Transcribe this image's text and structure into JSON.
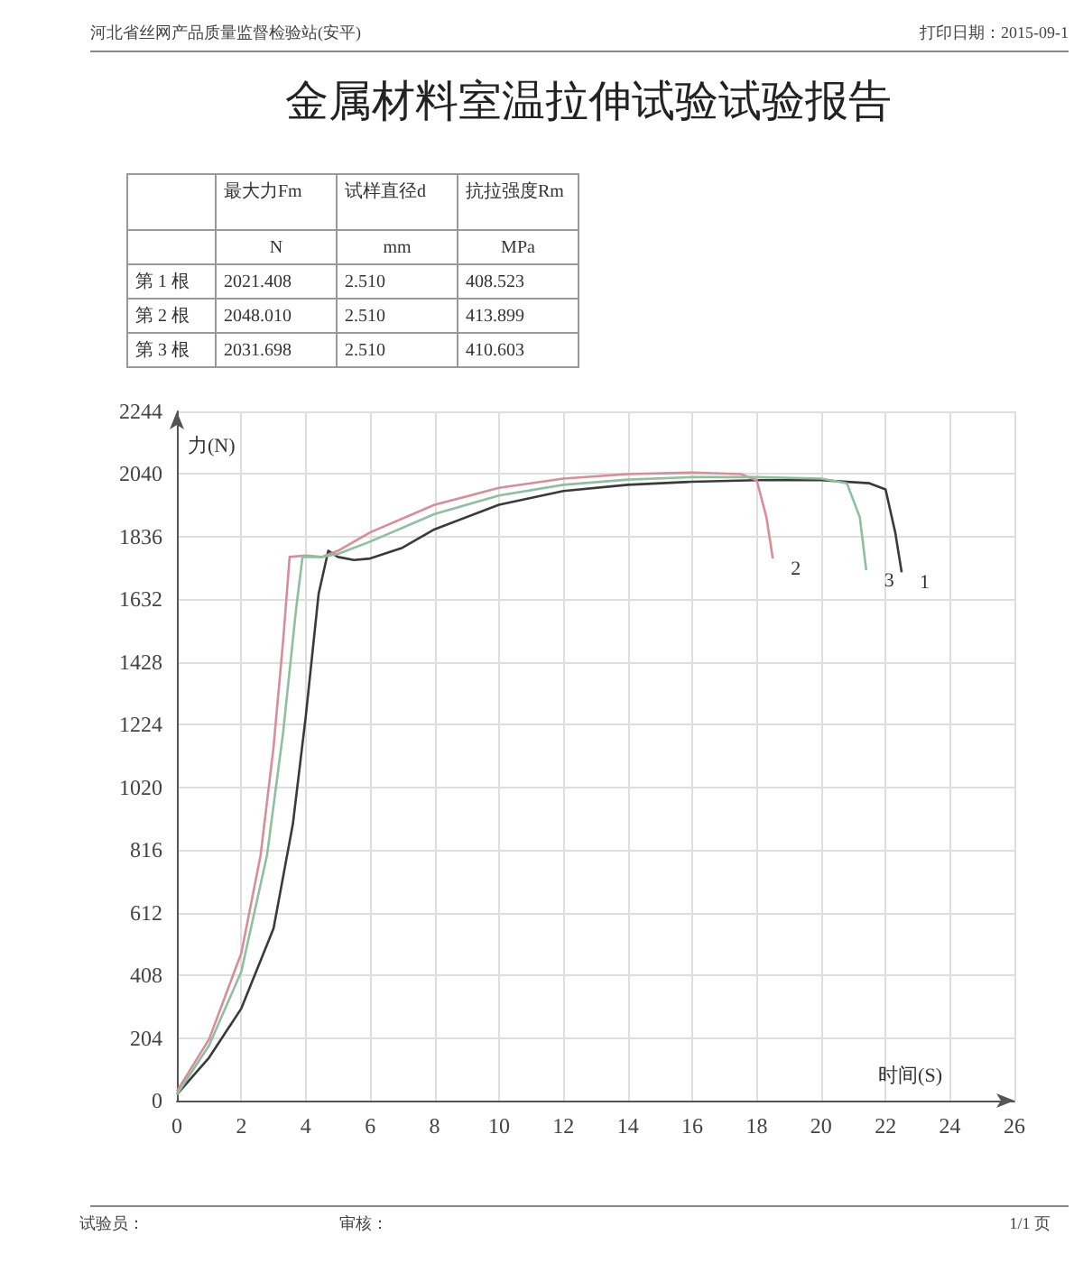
{
  "chart_data": {
    "type": "line",
    "title": "金属材料室温拉伸试验试验报告",
    "xlabel": "时间(S)",
    "ylabel": "力(N)",
    "xlim": [
      0,
      26
    ],
    "xticks": [
      0,
      2,
      4,
      6,
      8,
      10,
      12,
      14,
      16,
      18,
      20,
      22,
      24,
      26
    ],
    "ylim": [
      0,
      2244
    ],
    "yticks": [
      0,
      204,
      408,
      612,
      816,
      1020,
      1224,
      1428,
      1632,
      1836,
      2040,
      2244
    ],
    "grid": true,
    "marker": "none",
    "legend": false,
    "annotations": [
      "河北省丝网产品质量监督检验站(安平)",
      "打印日期：2015-09-1",
      "试验员：",
      "审核：",
      "1/1 页",
      "最大力Fm",
      "试样直径d",
      "抗拉强度Rm",
      "N",
      "mm",
      "MPa",
      "第 1 根",
      "2021.408",
      "2.510",
      "408.523",
      "第 2 根",
      "2048.010",
      "2.510",
      "413.899",
      "第 3 根",
      "2031.698",
      "2.510",
      "410.603"
    ],
    "series": [
      {
        "name": "1",
        "color": "#3a3a3a",
        "x": [
          0,
          1,
          2,
          3,
          3.6,
          4,
          4.4,
          4.7,
          5,
          5.5,
          6,
          7,
          8,
          10,
          12,
          14,
          16,
          18,
          20,
          21.5,
          22,
          22.3,
          22.5
        ],
        "values": [
          20,
          140,
          300,
          560,
          900,
          1250,
          1650,
          1790,
          1770,
          1760,
          1765,
          1800,
          1860,
          1940,
          1985,
          2005,
          2015,
          2020,
          2020,
          2010,
          1990,
          1850,
          1720
        ]
      },
      {
        "name": "2",
        "color": "#d98c9a",
        "x": [
          0,
          1,
          2,
          2.6,
          3,
          3.3,
          3.5,
          4,
          4.5,
          5,
          6,
          8,
          10,
          12,
          14,
          16,
          17.5,
          18,
          18.3,
          18.5
        ],
        "values": [
          30,
          200,
          480,
          800,
          1150,
          1500,
          1770,
          1775,
          1770,
          1790,
          1850,
          1940,
          1995,
          2025,
          2040,
          2045,
          2040,
          2020,
          1900,
          1765
        ]
      },
      {
        "name": "3",
        "color": "#8fbf9f",
        "x": [
          0,
          1,
          2,
          2.8,
          3.3,
          3.7,
          3.9,
          4.5,
          5,
          6,
          8,
          10,
          12,
          14,
          16,
          18,
          20,
          20.8,
          21.2,
          21.4
        ],
        "values": [
          20,
          180,
          420,
          800,
          1200,
          1600,
          1770,
          1770,
          1780,
          1820,
          1910,
          1970,
          2005,
          2022,
          2030,
          2030,
          2025,
          2010,
          1900,
          1727
        ]
      }
    ]
  }
}
